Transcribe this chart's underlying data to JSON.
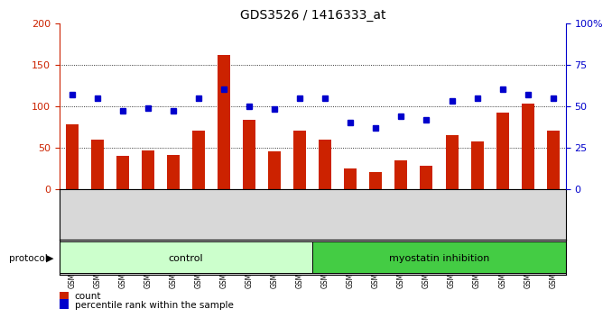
{
  "title": "GDS3526 / 1416333_at",
  "samples": [
    "GSM344631",
    "GSM344632",
    "GSM344633",
    "GSM344634",
    "GSM344635",
    "GSM344636",
    "GSM344637",
    "GSM344638",
    "GSM344639",
    "GSM344640",
    "GSM344641",
    "GSM344642",
    "GSM344643",
    "GSM344644",
    "GSM344645",
    "GSM344646",
    "GSM344647",
    "GSM344648",
    "GSM344649",
    "GSM344650"
  ],
  "counts": [
    78,
    60,
    40,
    47,
    41,
    70,
    162,
    83,
    46,
    70,
    60,
    25,
    20,
    35,
    28,
    65,
    57,
    92,
    103,
    70
  ],
  "percentiles": [
    57,
    55,
    47,
    49,
    47,
    55,
    60,
    50,
    48,
    55,
    55,
    40,
    37,
    44,
    42,
    53,
    55,
    60,
    57,
    55
  ],
  "bar_color": "#cc2200",
  "dot_color": "#0000cc",
  "control_color": "#ccffcc",
  "myostatin_color": "#44cc44",
  "grey_color": "#d8d8d8",
  "control_samples": 10,
  "myostatin_samples": 10,
  "ylim_left": [
    0,
    200
  ],
  "ylim_right": [
    0,
    100
  ],
  "left_ticks": [
    0,
    50,
    100,
    150,
    200
  ],
  "right_ticks": [
    0,
    25,
    50,
    75,
    100
  ],
  "right_tick_labels": [
    "0",
    "25",
    "50",
    "75",
    "100%"
  ],
  "grid_values": [
    50,
    100,
    150
  ],
  "title_fontsize": 10,
  "bg_color": "#ffffff"
}
